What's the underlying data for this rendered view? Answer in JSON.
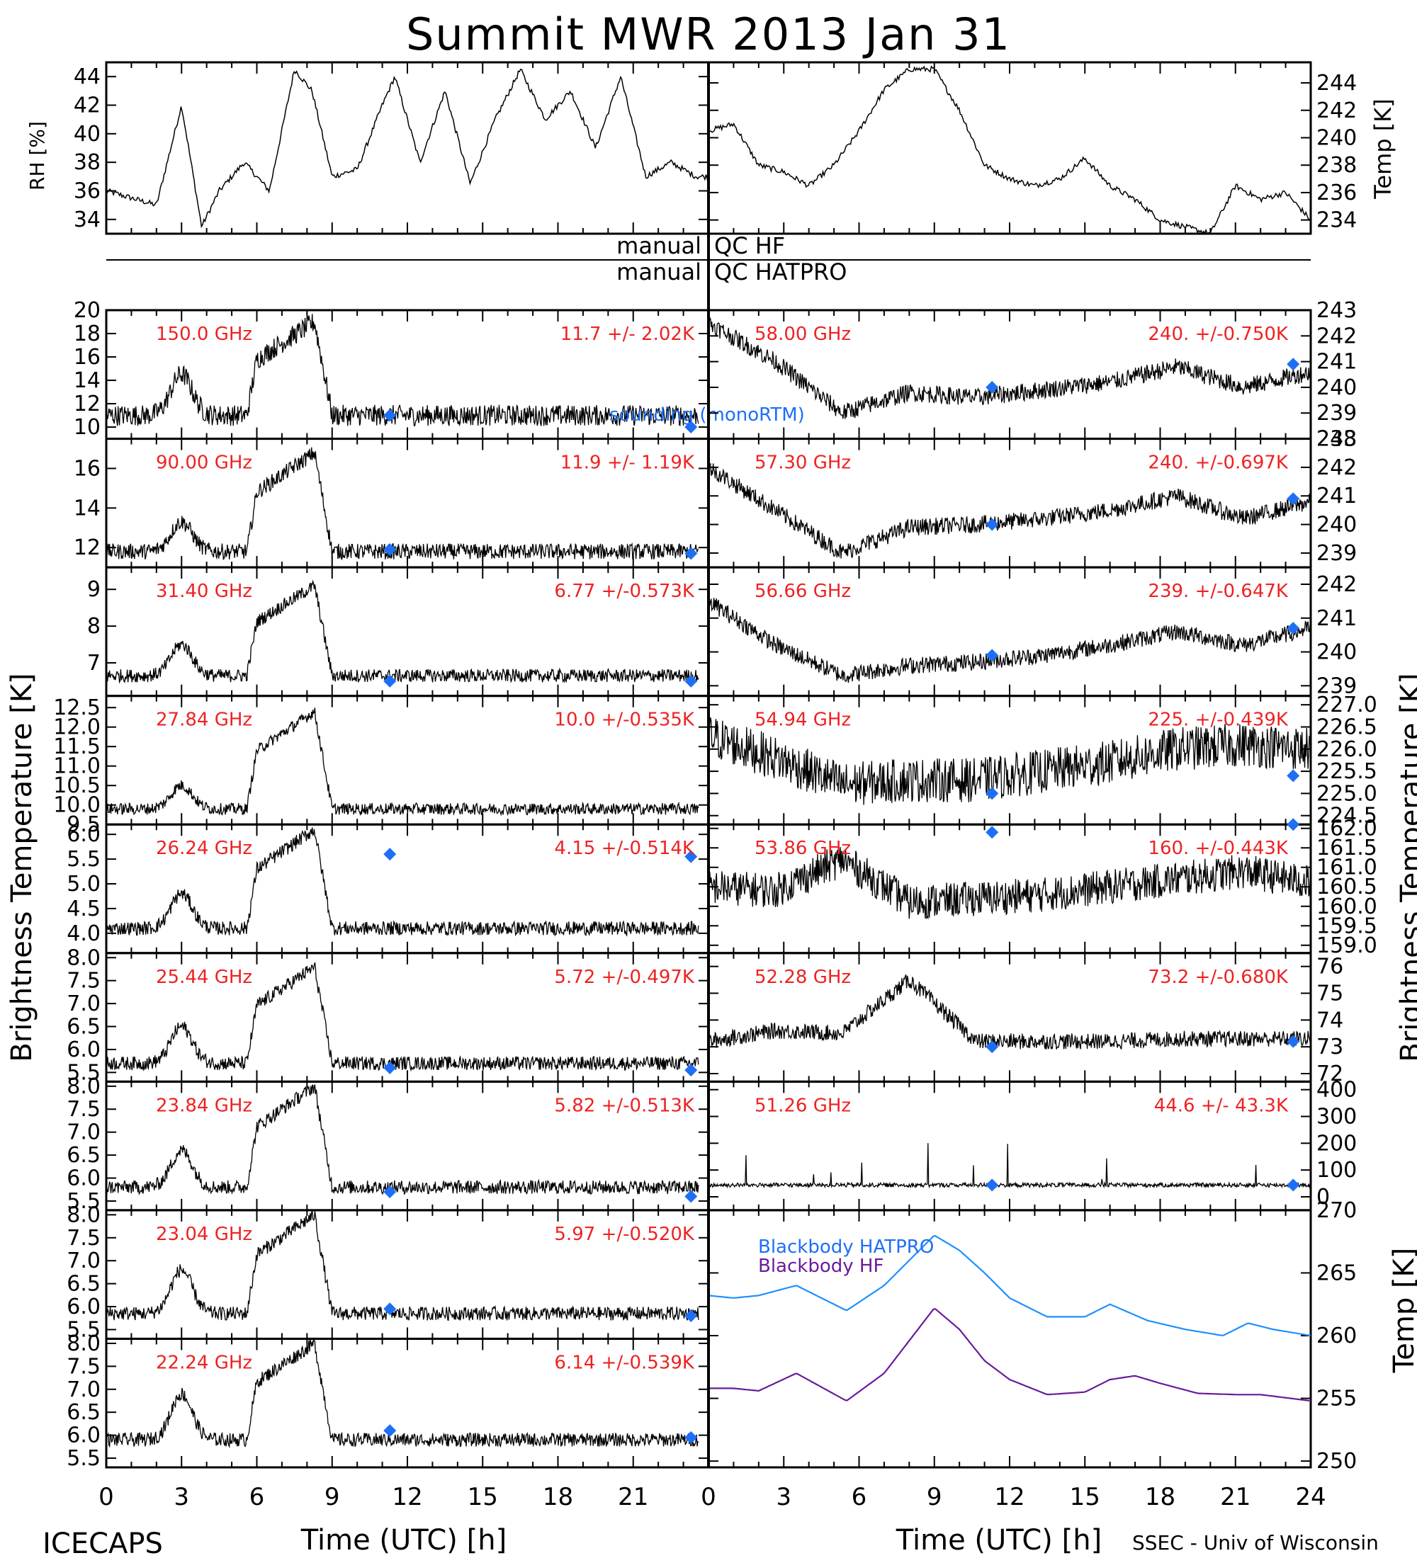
{
  "title": "Summit MWR 2013 Jan 31",
  "footer": {
    "left": "ICECAPS",
    "right": "SSEC - Univ of Wisconsin",
    "xlabel_left": "Time (UTC) [h]",
    "xlabel_right": "Time (UTC) [h]"
  },
  "qc": {
    "manual1": "manual",
    "qc1": "QC HF",
    "manual2": "manual",
    "qc2": "QC HATPRO"
  },
  "labels": {
    "rh": "RH [%]",
    "temp": "Temp [K]",
    "bt_left": "Brightness Temperature [K]",
    "bt_right": "Brightness Temperature [K]",
    "temp_bottom": "Temp [K]",
    "sounding": "sounding (monoRTM)",
    "bb_hatpro": "Blackbody HATPRO",
    "bb_hf": "Blackbody HF"
  },
  "colors": {
    "data": "#000000",
    "annotation": "#ee2222",
    "marker": "#1e6ff5",
    "hatpro": "#1e90ff",
    "hf": "#6a1b9a"
  },
  "chart_data": [
    {
      "type": "line",
      "id": "rh",
      "ylabel": "RH [%]",
      "ylim": [
        33,
        45
      ],
      "yticks": [
        34,
        36,
        38,
        40,
        42,
        44
      ],
      "xlim": [
        0,
        24
      ],
      "x": [
        0,
        1,
        2,
        3,
        3.8,
        4.5,
        5.5,
        6.5,
        7.5,
        8.2,
        9,
        10,
        11,
        11.5,
        12.5,
        13.5,
        14.5,
        15.5,
        16.5,
        17.5,
        18.5,
        19.5,
        20.5,
        21.5,
        22.5,
        23.5
      ],
      "y": [
        36,
        35.5,
        35,
        42,
        33.5,
        36,
        38,
        36,
        44.5,
        43,
        37,
        37.5,
        42,
        44,
        38,
        43,
        36.5,
        41,
        44.5,
        41,
        43,
        39,
        44,
        37,
        38,
        37
      ]
    },
    {
      "type": "line",
      "id": "temp",
      "ylabel": "Temp [K]",
      "ylim": [
        233,
        245.5
      ],
      "yticks": [
        234,
        236,
        238,
        240,
        242,
        244
      ],
      "xlim": [
        0,
        24
      ],
      "x": [
        0,
        1,
        2,
        3,
        4,
        5,
        6,
        7,
        8,
        9,
        10,
        11,
        12,
        13,
        14,
        15,
        16,
        17,
        18,
        19,
        20,
        21,
        22,
        23,
        24
      ],
      "y": [
        240.5,
        241,
        238,
        237.5,
        236.5,
        238,
        240.5,
        243.5,
        245,
        245,
        242,
        238,
        237,
        236.5,
        237,
        238.5,
        236.5,
        235.5,
        234,
        233.5,
        233,
        236.5,
        235.5,
        236,
        234
      ]
    },
    {
      "type": "line",
      "id": "bt-left",
      "xlim": [
        0,
        24
      ],
      "xticks": [
        0,
        3,
        6,
        9,
        12,
        15,
        18,
        21
      ],
      "panels": [
        {
          "freq": "150.0 GHz",
          "stat": "11.7 +/- 2.02K",
          "ylim": [
            9,
            20
          ],
          "yticks": [
            10,
            12,
            14,
            16,
            18,
            20
          ],
          "base": 11,
          "bump1": 14.5,
          "peak": 19,
          "noise": 0.9,
          "markers": [
            {
              "x": 11.3,
              "y": 11
            },
            {
              "x": 23.3,
              "y": 10
            }
          ]
        },
        {
          "freq": "90.00 GHz",
          "stat": "11.9 +/- 1.19K",
          "ylim": [
            11,
            17.5
          ],
          "yticks": [
            12,
            14,
            16
          ],
          "base": 11.8,
          "bump1": 13.3,
          "peak": 16.8,
          "noise": 0.4,
          "markers": [
            {
              "x": 11.3,
              "y": 11.9
            },
            {
              "x": 23.3,
              "y": 11.7
            }
          ]
        },
        {
          "freq": "31.40 GHz",
          "stat": "6.77 +/-0.573K",
          "ylim": [
            6.1,
            9.6
          ],
          "yticks": [
            6,
            7,
            8,
            9
          ],
          "base": 6.65,
          "bump1": 7.5,
          "peak": 9.1,
          "noise": 0.18,
          "markers": [
            {
              "x": 11.3,
              "y": 6.5
            },
            {
              "x": 23.3,
              "y": 6.5
            }
          ]
        },
        {
          "freq": "27.84 GHz",
          "stat": "10.0 +/-0.535K",
          "ylim": [
            9.5,
            12.8
          ],
          "yticks": [
            9.5,
            10.0,
            10.5,
            11.0,
            11.5,
            12.0,
            12.5
          ],
          "base": 9.9,
          "bump1": 10.5,
          "peak": 12.4,
          "noise": 0.15,
          "markers": []
        },
        {
          "freq": "26.24 GHz",
          "stat": "4.15 +/-0.514K",
          "ylim": [
            3.6,
            6.2
          ],
          "yticks": [
            4.0,
            4.5,
            5.0,
            5.5,
            6.0
          ],
          "base": 4.1,
          "bump1": 4.8,
          "peak": 6.1,
          "noise": 0.14,
          "markers": [
            {
              "x": 11.3,
              "y": 5.6
            },
            {
              "x": 23.3,
              "y": 5.55
            }
          ]
        },
        {
          "freq": "25.44 GHz",
          "stat": "5.72 +/-0.497K",
          "ylim": [
            5.3,
            8.1
          ],
          "yticks": [
            5.5,
            6.0,
            6.5,
            7.0,
            7.5,
            8.0
          ],
          "base": 5.7,
          "bump1": 6.5,
          "peak": 7.8,
          "noise": 0.15,
          "markers": [
            {
              "x": 11.3,
              "y": 5.6
            },
            {
              "x": 23.3,
              "y": 5.55
            }
          ]
        },
        {
          "freq": "23.84 GHz",
          "stat": "5.82 +/-0.513K",
          "ylim": [
            5.3,
            8.1
          ],
          "yticks": [
            5.5,
            6.0,
            6.5,
            7.0,
            7.5,
            8.0
          ],
          "base": 5.8,
          "bump1": 6.6,
          "peak": 8.0,
          "noise": 0.15,
          "markers": [
            {
              "x": 11.3,
              "y": 5.7
            },
            {
              "x": 23.3,
              "y": 5.6
            }
          ]
        },
        {
          "freq": "23.04 GHz",
          "stat": "5.97 +/-0.520K",
          "ylim": [
            5.3,
            8.1
          ],
          "yticks": [
            5.5,
            6.0,
            6.5,
            7.0,
            7.5,
            8.0
          ],
          "base": 5.85,
          "bump1": 6.8,
          "peak": 8.0,
          "noise": 0.15,
          "markers": [
            {
              "x": 11.3,
              "y": 5.95
            },
            {
              "x": 23.3,
              "y": 5.8
            }
          ]
        },
        {
          "freq": "22.24 GHz",
          "stat": "6.14 +/-0.539K",
          "ylim": [
            5.3,
            8.1
          ],
          "yticks": [
            5.5,
            6.0,
            6.5,
            7.0,
            7.5,
            8.0
          ],
          "base": 5.9,
          "bump1": 6.9,
          "peak": 8.0,
          "noise": 0.15,
          "markers": [
            {
              "x": 11.3,
              "y": 6.1
            },
            {
              "x": 23.3,
              "y": 5.95
            }
          ]
        }
      ]
    },
    {
      "type": "line",
      "id": "bt-right",
      "xlim": [
        0,
        24
      ],
      "xticks": [
        0,
        3,
        6,
        9,
        12,
        15,
        18,
        21,
        24
      ],
      "panels": [
        {
          "freq": "58.00 GHz",
          "stat": "240. +/-0.750K",
          "ylim": [
            238,
            243
          ],
          "yticks": [
            238,
            239,
            240,
            241,
            242,
            243
          ],
          "profile": [
            242.5,
            241,
            239,
            239.8,
            239.6,
            239.9,
            240.2,
            240.8,
            240,
            240.6
          ],
          "noise": 0.35,
          "markers": [
            {
              "x": 11.3,
              "y": 240
            },
            {
              "x": 23.3,
              "y": 240.9
            }
          ]
        },
        {
          "freq": "57.30 GHz",
          "stat": "240. +/-0.697K",
          "ylim": [
            238.5,
            243
          ],
          "yticks": [
            239,
            240,
            241,
            242,
            243
          ],
          "profile": [
            242,
            240.5,
            239,
            239.9,
            240,
            240.2,
            240.5,
            241,
            240.2,
            240.8
          ],
          "noise": 0.3,
          "markers": [
            {
              "x": 11.3,
              "y": 240
            },
            {
              "x": 23.3,
              "y": 240.9
            }
          ]
        },
        {
          "freq": "56.66 GHz",
          "stat": "239. +/-0.647K",
          "ylim": [
            238.7,
            242.5
          ],
          "yticks": [
            239,
            240,
            241,
            242
          ],
          "profile": [
            241.5,
            240.2,
            239.3,
            239.6,
            239.7,
            239.9,
            240.2,
            240.6,
            240.2,
            240.7
          ],
          "noise": 0.25,
          "markers": [
            {
              "x": 11.3,
              "y": 239.9
            },
            {
              "x": 23.3,
              "y": 240.7
            }
          ]
        },
        {
          "freq": "54.94 GHz",
          "stat": "225. +/-0.439K",
          "ylim": [
            224.3,
            227.2
          ],
          "yticks": [
            224.5,
            225.0,
            225.5,
            226.0,
            226.5,
            227.0
          ],
          "profile": [
            226.3,
            225.8,
            225.2,
            225.3,
            225.3,
            225.5,
            225.7,
            226.0,
            226.1,
            226.0
          ],
          "noise": 0.5,
          "markers": [
            {
              "x": 11.3,
              "y": 225.0
            },
            {
              "x": 23.3,
              "y": 225.4
            }
          ]
        },
        {
          "freq": "53.86 GHz",
          "stat": "160. +/-0.443K",
          "ylim": [
            158.8,
            162.1
          ],
          "yticks": [
            159.0,
            159.5,
            160.0,
            160.5,
            161.0,
            161.5,
            162.0
          ],
          "profile": [
            160.5,
            160.4,
            161.2,
            160.1,
            160.2,
            160.3,
            160.5,
            160.7,
            160.9,
            160.6
          ],
          "noise": 0.45,
          "markers": [
            {
              "x": 11.3,
              "y": 161.9
            },
            {
              "x": 23.3,
              "y": 162.1
            }
          ]
        },
        {
          "freq": "52.28 GHz",
          "stat": "73.2 +/-0.680K",
          "ylim": [
            71.7,
            76.5
          ],
          "yticks": [
            72,
            73,
            74,
            75,
            76
          ],
          "profile": [
            73.2,
            73.6,
            73.5,
            75.5,
            73.2,
            73.2,
            73.2,
            73.3,
            73.3,
            73.3
          ],
          "noise": 0.3,
          "markers": [
            {
              "x": 11.3,
              "y": 73
            },
            {
              "x": 23.3,
              "y": 73.2
            }
          ]
        },
        {
          "freq": "51.26 GHz",
          "stat": "44.6 +/- 43.3K",
          "ylim": [
            -50,
            430
          ],
          "yticks": [
            0,
            100,
            200,
            300,
            400
          ],
          "profile": [
            44,
            44,
            44,
            44,
            44,
            44,
            44,
            44,
            44,
            44
          ],
          "noise": 8,
          "markers": [
            {
              "x": 11.3,
              "y": 44
            },
            {
              "x": 23.3,
              "y": 44
            }
          ]
        }
      ]
    },
    {
      "type": "line",
      "id": "blackbody",
      "ylabel": "Temp [K]",
      "ylim": [
        249.5,
        270
      ],
      "yticks": [
        250,
        255,
        260,
        265,
        270
      ],
      "xlim": [
        0,
        24
      ],
      "series": [
        {
          "name": "Blackbody HATPRO",
          "x": [
            0,
            1,
            2,
            3.5,
            5.5,
            7,
            9,
            10,
            11,
            12,
            13.5,
            15,
            16,
            17.5,
            19,
            20.5,
            21.5,
            22.5,
            24
          ],
          "y": [
            263.2,
            263,
            263.2,
            264,
            262,
            264,
            268,
            266.8,
            265,
            263,
            261.5,
            261.5,
            262.5,
            261.2,
            260.5,
            260,
            261,
            260.5,
            260
          ]
        },
        {
          "name": "Blackbody HF",
          "x": [
            0,
            1,
            2,
            3.5,
            5.5,
            7,
            9,
            10,
            11,
            12,
            13.5,
            15,
            16,
            17,
            18,
            19.5,
            21,
            22,
            24
          ],
          "y": [
            255.8,
            255.8,
            255.6,
            257,
            254.8,
            257,
            262.2,
            260.5,
            258,
            256.5,
            255.3,
            255.5,
            256.5,
            256.8,
            256.2,
            255.4,
            255.3,
            255.3,
            254.8
          ]
        }
      ]
    }
  ]
}
